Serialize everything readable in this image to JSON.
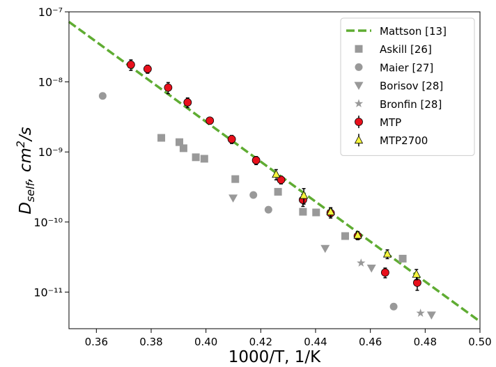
{
  "chart_data": {
    "type": "scatter",
    "xlabel": "1000/T, 1/K",
    "ylabel": [
      "D",
      "self",
      ", cm",
      "2",
      "/s"
    ],
    "xlim": [
      0.35,
      0.5
    ],
    "xticks": [
      0.36,
      0.38,
      {
        "value": 0.4,
        "label": "0.40"
      },
      0.42,
      0.44,
      0.46,
      0.48,
      {
        "value": 0.5,
        "label": "0.50"
      }
    ],
    "ylim": [
      3e-12,
      1e-07
    ],
    "log_y": true,
    "yticks": [
      {
        "value": 1e-11,
        "label": "10⁻¹¹"
      },
      {
        "value": 1e-10,
        "label": "10⁻¹⁰"
      },
      {
        "value": 1e-09,
        "label": "10⁻⁹"
      },
      {
        "value": 1e-08,
        "label": "10⁻⁸"
      },
      {
        "value": 1e-07,
        "label": "10⁻⁷"
      }
    ],
    "legend": "upper right",
    "series": [
      {
        "name": "Mattson [13]",
        "color": "#5fac32",
        "marker": "dashed-line",
        "x": [
          0.35,
          0.5
        ],
        "values": [
          7.2e-08,
          3.8e-12
        ]
      },
      {
        "name": "Askill [26]",
        "color": "#999999",
        "marker": "square",
        "x": [
          0.3837,
          0.3903,
          0.3918,
          0.3963,
          0.3994,
          0.4107,
          0.4263,
          0.4354,
          0.4402,
          0.4508,
          0.4718
        ],
        "values": [
          1.59e-09,
          1.38e-09,
          1.13e-09,
          8.4e-10,
          8e-10,
          4.1e-10,
          2.7e-10,
          1.4e-10,
          1.37e-10,
          6.3e-11,
          3e-11
        ]
      },
      {
        "name": "Maier [27]",
        "color": "#999999",
        "marker": "circle",
        "x": [
          0.3623,
          0.4173,
          0.4228,
          0.4685
        ],
        "values": [
          6.3e-09,
          2.43e-10,
          1.5e-10,
          6.2e-12
        ]
      },
      {
        "name": "Borisov [28]",
        "color": "#999999",
        "marker": "triangle-down",
        "x": [
          0.4099,
          0.4435,
          0.4604,
          0.4823
        ],
        "values": [
          2.2e-10,
          4.2e-11,
          2.2e-11,
          4.7e-12
        ]
      },
      {
        "name": "Bronfin [28]",
        "color": "#999999",
        "marker": "star",
        "x": [
          0.4566,
          0.4783
        ],
        "values": [
          2.6e-11,
          5e-12
        ]
      },
      {
        "name": "MTP",
        "color": "#e8101c",
        "marker": "circle",
        "x": [
          0.3726,
          0.3787,
          0.3862,
          0.3933,
          0.4014,
          0.4094,
          0.4183,
          0.4274,
          0.4354,
          0.4455,
          0.4554,
          0.4654,
          0.4771
        ],
        "values": [
          1.76e-08,
          1.53e-08,
          8.3e-09,
          5.1e-09,
          2.8e-09,
          1.52e-09,
          7.6e-10,
          4e-10,
          2.07e-10,
          1.34e-10,
          6.3e-11,
          1.9e-11,
          1.36e-11
        ],
        "errors": [
          3e-09,
          2e-09,
          1.5e-09,
          8e-10,
          3e-10,
          2e-10,
          1e-10,
          5e-11,
          4e-11,
          2e-11,
          7e-12,
          3e-12,
          3e-12
        ]
      },
      {
        "name": "MTP2700",
        "color": "#f5f53c",
        "marker": "triangle-up",
        "x": [
          0.4256,
          0.4357,
          0.4455,
          0.4554,
          0.4662,
          0.4768
        ],
        "values": [
          4.8e-10,
          2.4e-10,
          1.4e-10,
          6.5e-11,
          3.5e-11,
          1.8e-11
        ],
        "errors": [
          8e-11,
          6e-11,
          2e-11,
          8e-12,
          5e-12,
          3e-12
        ]
      }
    ]
  }
}
